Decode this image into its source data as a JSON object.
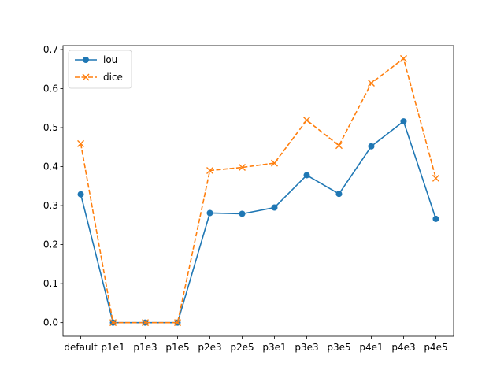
{
  "chart_data": {
    "type": "line",
    "title": "",
    "xlabel": "",
    "ylabel": "",
    "categories": [
      "default",
      "p1e1",
      "p1e3",
      "p1e5",
      "p2e3",
      "p2e5",
      "p3e1",
      "p3e3",
      "p3e5",
      "p4e1",
      "p4e3",
      "p4e5"
    ],
    "ylim": [
      -0.035,
      0.71
    ],
    "yticks": [
      0.0,
      0.1,
      0.2,
      0.3,
      0.4,
      0.5,
      0.6,
      0.7
    ],
    "ytick_labels": [
      "0.0",
      "0.1",
      "0.2",
      "0.3",
      "0.4",
      "0.5",
      "0.6",
      "0.7"
    ],
    "grid": false,
    "legend_position": "top-left",
    "series": [
      {
        "name": "iou",
        "color": "#1f77b4",
        "linestyle": "solid",
        "marker": "circle",
        "values": [
          0.329,
          0.0,
          0.0,
          0.0,
          0.281,
          0.279,
          0.295,
          0.378,
          0.33,
          0.452,
          0.516,
          0.266
        ]
      },
      {
        "name": "dice",
        "color": "#ff7f0e",
        "linestyle": "dashed",
        "marker": "x",
        "values": [
          0.459,
          0.0,
          0.0,
          0.0,
          0.39,
          0.398,
          0.409,
          0.519,
          0.454,
          0.614,
          0.677,
          0.37
        ]
      }
    ]
  }
}
